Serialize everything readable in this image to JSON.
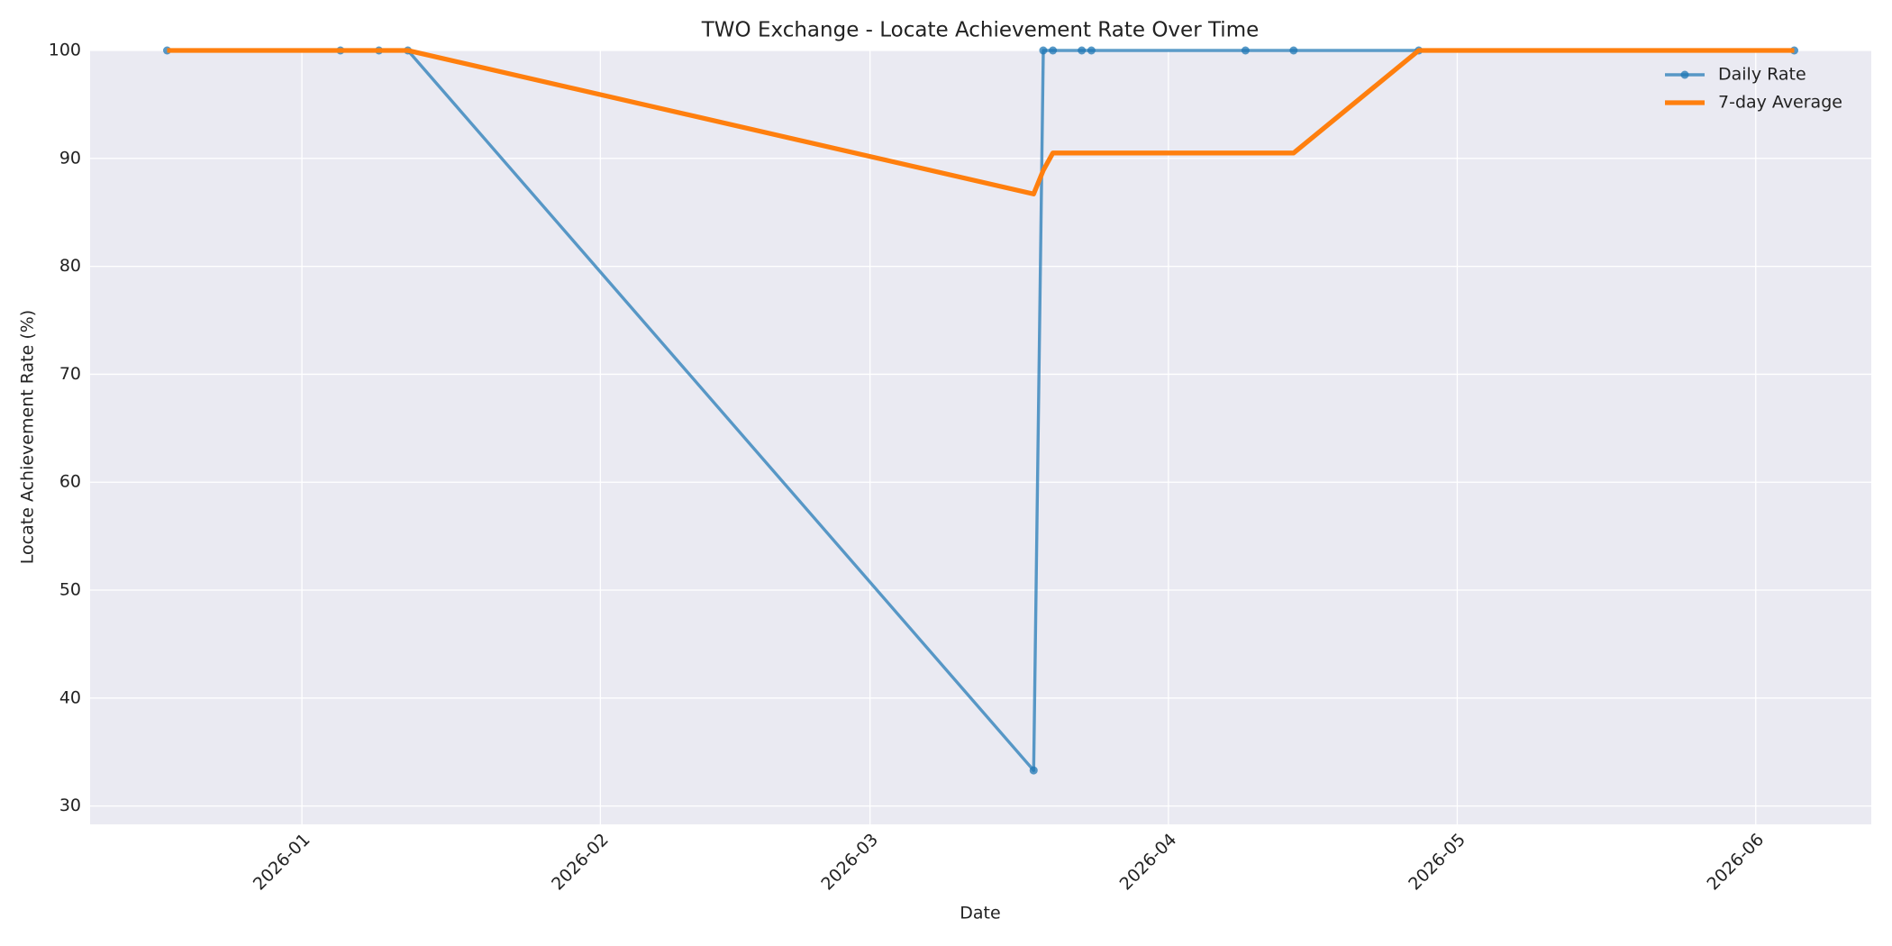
{
  "chart_data": {
    "type": "line",
    "title": "TWO Exchange - Locate Achievement Rate Over Time",
    "xlabel": "Date",
    "ylabel": "Locate Achievement Rate (%)",
    "x": [
      "2025-12-18",
      "2026-01-05",
      "2026-01-09",
      "2026-01-12",
      "2026-03-18",
      "2026-03-19",
      "2026-03-20",
      "2026-03-23",
      "2026-03-24",
      "2026-04-09",
      "2026-04-14",
      "2026-04-27",
      "2026-06-05"
    ],
    "series": [
      {
        "name": "Daily Rate",
        "color": "#1f77b4",
        "marker": "o",
        "values": [
          100,
          100,
          100,
          100,
          33.3,
          100,
          100,
          100,
          100,
          100,
          100,
          100,
          100
        ]
      },
      {
        "name": "7-day Average",
        "color": "#ff7f0e",
        "values": [
          100,
          100,
          100,
          100,
          86.7,
          88.9,
          90.5,
          90.5,
          90.5,
          90.5,
          90.5,
          100,
          100
        ]
      }
    ],
    "xlim": [
      "2025-12-10",
      "2026-06-13"
    ],
    "xticks": [
      {
        "value": "2026-01-01",
        "label": "2026-01"
      },
      {
        "value": "2026-02-01",
        "label": "2026-02"
      },
      {
        "value": "2026-03-01",
        "label": "2026-03"
      },
      {
        "value": "2026-04-01",
        "label": "2026-04"
      },
      {
        "value": "2026-05-01",
        "label": "2026-05"
      },
      {
        "value": "2026-06-01",
        "label": "2026-06"
      }
    ],
    "ylim": [
      28.3,
      100
    ],
    "yticks": [
      30,
      40,
      50,
      60,
      70,
      80,
      90,
      100
    ],
    "grid": true,
    "legend": "upper right"
  }
}
